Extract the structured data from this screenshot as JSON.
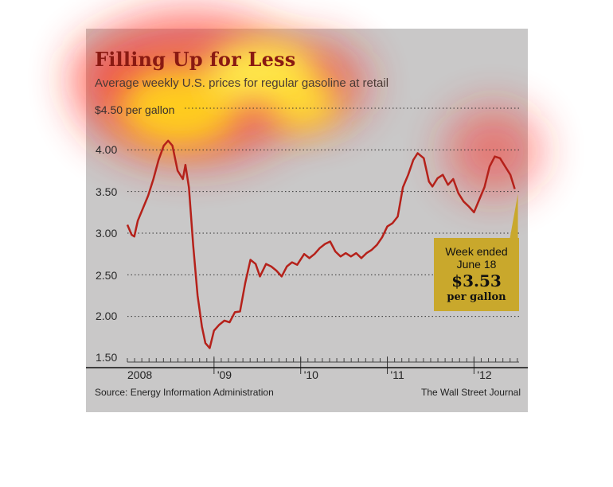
{
  "header": {
    "title": "Filling Up for Less",
    "subtitle": "Average weekly U.S. prices for regular gasoline at retail"
  },
  "unit_label": "$4.50 per gallon",
  "y_ticks": [
    "4.00",
    "3.50",
    "3.00",
    "2.50",
    "2.00",
    "1.50"
  ],
  "x_ticks": [
    "2008",
    "'09",
    "'10",
    "'11",
    "'12"
  ],
  "callout": {
    "line1": "Week ended",
    "line2": "June 18",
    "price": "$3.53",
    "unit": "per gallon"
  },
  "footer": {
    "source": "Source: Energy Information Administration",
    "credit": "The Wall Street Journal"
  },
  "colors": {
    "line": "#b5211a",
    "title": "#8a1a12",
    "callout": "#c9a82c",
    "panel": "#c9c8c8"
  },
  "chart_data": {
    "type": "line",
    "title": "Filling Up for Less",
    "subtitle": "Average weekly U.S. prices for regular gasoline at retail",
    "ylabel": "$4.50 per gallon",
    "ylim": [
      1.5,
      4.5
    ],
    "xlim": [
      2008.0,
      2012.52
    ],
    "grid": "horizontal dotted",
    "series": [
      {
        "values": [
          [
            2008.0,
            3.1
          ],
          [
            2008.05,
            2.98
          ],
          [
            2008.08,
            2.96
          ],
          [
            2008.12,
            3.15
          ],
          [
            2008.18,
            3.3
          ],
          [
            2008.24,
            3.45
          ],
          [
            2008.3,
            3.65
          ],
          [
            2008.36,
            3.88
          ],
          [
            2008.42,
            4.05
          ],
          [
            2008.47,
            4.11
          ],
          [
            2008.52,
            4.05
          ],
          [
            2008.58,
            3.75
          ],
          [
            2008.64,
            3.65
          ],
          [
            2008.67,
            3.82
          ],
          [
            2008.71,
            3.55
          ],
          [
            2008.76,
            2.85
          ],
          [
            2008.81,
            2.25
          ],
          [
            2008.86,
            1.88
          ],
          [
            2008.9,
            1.68
          ],
          [
            2008.95,
            1.62
          ],
          [
            2009.0,
            1.83
          ],
          [
            2009.06,
            1.9
          ],
          [
            2009.12,
            1.95
          ],
          [
            2009.18,
            1.93
          ],
          [
            2009.24,
            2.05
          ],
          [
            2009.3,
            2.06
          ],
          [
            2009.36,
            2.4
          ],
          [
            2009.42,
            2.68
          ],
          [
            2009.48,
            2.63
          ],
          [
            2009.53,
            2.48
          ],
          [
            2009.6,
            2.63
          ],
          [
            2009.66,
            2.6
          ],
          [
            2009.72,
            2.55
          ],
          [
            2009.78,
            2.48
          ],
          [
            2009.84,
            2.6
          ],
          [
            2009.9,
            2.65
          ],
          [
            2009.96,
            2.62
          ],
          [
            2010.04,
            2.75
          ],
          [
            2010.1,
            2.7
          ],
          [
            2010.16,
            2.75
          ],
          [
            2010.22,
            2.82
          ],
          [
            2010.28,
            2.87
          ],
          [
            2010.34,
            2.9
          ],
          [
            2010.4,
            2.78
          ],
          [
            2010.46,
            2.72
          ],
          [
            2010.52,
            2.76
          ],
          [
            2010.58,
            2.72
          ],
          [
            2010.64,
            2.76
          ],
          [
            2010.7,
            2.7
          ],
          [
            2010.76,
            2.76
          ],
          [
            2010.82,
            2.8
          ],
          [
            2010.88,
            2.86
          ],
          [
            2010.94,
            2.95
          ],
          [
            2011.0,
            3.08
          ],
          [
            2011.06,
            3.12
          ],
          [
            2011.12,
            3.2
          ],
          [
            2011.18,
            3.55
          ],
          [
            2011.24,
            3.7
          ],
          [
            2011.3,
            3.88
          ],
          [
            2011.35,
            3.96
          ],
          [
            2011.42,
            3.9
          ],
          [
            2011.48,
            3.62
          ],
          [
            2011.52,
            3.56
          ],
          [
            2011.58,
            3.66
          ],
          [
            2011.64,
            3.7
          ],
          [
            2011.7,
            3.58
          ],
          [
            2011.76,
            3.65
          ],
          [
            2011.82,
            3.48
          ],
          [
            2011.88,
            3.38
          ],
          [
            2011.94,
            3.32
          ],
          [
            2012.0,
            3.25
          ],
          [
            2012.06,
            3.4
          ],
          [
            2012.12,
            3.55
          ],
          [
            2012.18,
            3.8
          ],
          [
            2012.24,
            3.92
          ],
          [
            2012.3,
            3.9
          ],
          [
            2012.36,
            3.8
          ],
          [
            2012.42,
            3.7
          ],
          [
            2012.47,
            3.53
          ]
        ]
      }
    ]
  }
}
